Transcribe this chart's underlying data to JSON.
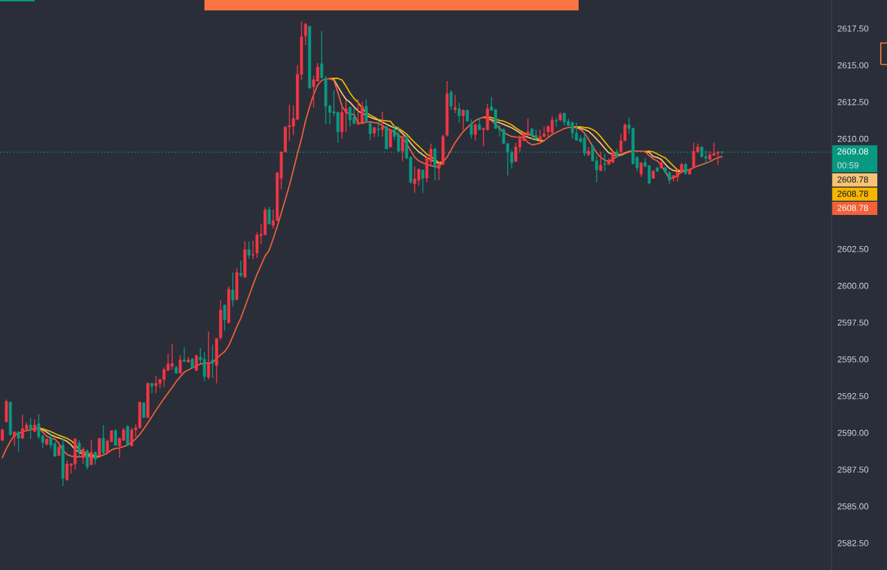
{
  "chart_data": {
    "type": "candlestick",
    "categories": [
      null,
      null,
      null,
      null,
      null,
      null,
      null,
      null,
      null,
      null,
      null,
      null,
      null,
      null,
      null,
      null,
      null,
      null,
      null,
      null,
      null,
      null,
      null,
      null,
      null,
      null,
      null,
      null,
      null,
      null,
      null,
      null,
      null,
      null,
      null,
      null,
      null,
      null,
      null,
      null,
      null,
      null,
      null,
      null,
      null,
      null,
      null,
      null,
      null,
      null,
      null,
      null,
      null,
      null,
      null,
      null,
      null,
      null,
      null,
      null,
      null,
      null,
      null,
      null,
      null,
      null,
      null,
      null,
      null,
      null,
      null,
      null,
      null,
      null,
      null,
      null,
      null,
      null,
      null,
      null,
      null,
      null,
      null,
      null,
      null,
      null,
      null,
      null,
      null,
      null,
      null,
      null,
      null,
      null,
      null,
      null,
      null,
      null,
      null,
      null,
      null,
      null,
      null,
      null,
      null,
      null,
      null,
      null,
      null,
      null,
      null,
      null,
      null,
      null,
      null,
      null,
      null,
      null,
      null,
      null,
      null,
      null,
      null,
      null,
      null,
      null,
      null,
      null,
      null,
      null,
      null,
      null,
      null,
      null,
      null,
      null,
      null,
      null,
      null,
      null,
      null,
      null,
      null,
      null,
      null,
      null,
      null,
      null,
      null,
      null,
      null,
      null,
      null,
      null,
      null,
      null,
      null,
      null,
      null,
      null,
      null,
      null,
      null,
      null,
      null,
      null,
      null,
      null,
      null,
      null,
      null,
      null,
      null,
      null,
      null,
      null,
      null,
      null,
      null
    ],
    "ohlc": [
      [
        2589.48,
        2590.28,
        2589.43,
        2590.19
      ],
      [
        2590.75,
        2592.26,
        2590.7,
        2592.12
      ],
      [
        2592.08,
        2592.12,
        2589.81,
        2589.86
      ],
      [
        2589.72,
        2590.09,
        2589.1,
        2590.05
      ],
      [
        2590.05,
        2590.09,
        2588.72,
        2589.62
      ],
      [
        2589.62,
        2591.22,
        2589.57,
        2590.28
      ],
      [
        2590.23,
        2590.7,
        2590.19,
        2590.52
      ],
      [
        2590.52,
        2591.03,
        2589.57,
        2590.28
      ],
      [
        2590.09,
        2590.89,
        2590.05,
        2590.52
      ],
      [
        2590.61,
        2591.27,
        2589.57,
        2589.72
      ],
      [
        2589.76,
        2589.86,
        2588.96,
        2589.34
      ],
      [
        2589.2,
        2589.62,
        2589.15,
        2589.57
      ],
      [
        2589.62,
        2590.09,
        2588.91,
        2589.15
      ],
      [
        2589.25,
        2589.39,
        2588.39,
        2588.39
      ],
      [
        2588.44,
        2589.1,
        2588.44,
        2589.01
      ],
      [
        2589.15,
        2589.62,
        2586.37,
        2586.89
      ],
      [
        2586.79,
        2588.11,
        2586.74,
        2587.87
      ],
      [
        2587.78,
        2587.92,
        2587.21,
        2587.87
      ],
      [
        2587.87,
        2589.62,
        2587.5,
        2589.57
      ],
      [
        2589.29,
        2589.48,
        2588.3,
        2588.67
      ],
      [
        2588.3,
        2589.01,
        2587.87,
        2588.87
      ],
      [
        2588.77,
        2588.87,
        2587.5,
        2587.68
      ],
      [
        2587.83,
        2589.53,
        2587.78,
        2588.67
      ],
      [
        2588.67,
        2588.72,
        2587.83,
        2588.2
      ],
      [
        2588.44,
        2589.62,
        2588.44,
        2589.62
      ],
      [
        2589.62,
        2590.52,
        2588.53,
        2588.63
      ],
      [
        2588.63,
        2589.53,
        2588.63,
        2589.43
      ],
      [
        2589.39,
        2590.14,
        2589.39,
        2590.14
      ],
      [
        2590.14,
        2590.23,
        2589.1,
        2589.15
      ],
      [
        2589.1,
        2589.67,
        2588.3,
        2589.62
      ],
      [
        2589.48,
        2590.33,
        2589.43,
        2590.19
      ],
      [
        2590.42,
        2590.52,
        2589.1,
        2589.15
      ],
      [
        2589.1,
        2590.33,
        2589.1,
        2590.19
      ],
      [
        2590.19,
        2590.56,
        2589.72,
        2590.33
      ],
      [
        2590.33,
        2592.08,
        2590.28,
        2592.08
      ],
      [
        2592.03,
        2592.08,
        2590.99,
        2591.03
      ],
      [
        2591.03,
        2593.44,
        2591.03,
        2593.35
      ],
      [
        2593.35,
        2593.39,
        2592.69,
        2593.16
      ],
      [
        2593.2,
        2593.86,
        2592.69,
        2593.35
      ],
      [
        2593.35,
        2593.63,
        2593.02,
        2593.63
      ],
      [
        2593.63,
        2594.43,
        2593.11,
        2594.29
      ],
      [
        2594.24,
        2595.38,
        2594.19,
        2594.67
      ],
      [
        2594.52,
        2596.03,
        2594.29,
        2594.71
      ],
      [
        2594.43,
        2594.57,
        2594.01,
        2594.05
      ],
      [
        2594.05,
        2595.28,
        2594.01,
        2594.95
      ],
      [
        2594.95,
        2595.8,
        2594.81,
        2594.86
      ],
      [
        2594.81,
        2595.14,
        2594.76,
        2594.95
      ],
      [
        2595.0,
        2595.09,
        2594.34,
        2594.43
      ],
      [
        2594.24,
        2595.33,
        2594.19,
        2595.23
      ],
      [
        2595.14,
        2595.75,
        2594.71,
        2594.95
      ],
      [
        2595.0,
        2595.47,
        2593.49,
        2593.82
      ],
      [
        2593.77,
        2596.89,
        2593.63,
        2594.76
      ],
      [
        2594.95,
        2595.99,
        2593.72,
        2594.71
      ],
      [
        2594.57,
        2596.41,
        2593.35,
        2596.41
      ],
      [
        2596.46,
        2599.01,
        2596.32,
        2598.34
      ],
      [
        2598.68,
        2598.72,
        2596.93,
        2597.69
      ],
      [
        2597.5,
        2599.95,
        2597.4,
        2599.76
      ],
      [
        2599.71,
        2600.89,
        2598.58,
        2599.01
      ],
      [
        2599.05,
        2601.18,
        2599.01,
        2600.89
      ],
      [
        2600.85,
        2601.7,
        2600.57,
        2600.7
      ],
      [
        2600.57,
        2603.02,
        2600.57,
        2602.45
      ],
      [
        2602.45,
        2603.02,
        2601.84,
        2602.07
      ],
      [
        2602.07,
        2603.06,
        2601.79,
        2602.12
      ],
      [
        2602.21,
        2603.63,
        2601.89,
        2603.44
      ],
      [
        2603.4,
        2604.19,
        2602.83,
        2603.49
      ],
      [
        2603.49,
        2605.33,
        2603.4,
        2605.14
      ],
      [
        2605.18,
        2605.37,
        2604.15,
        2604.19
      ],
      [
        2604.1,
        2605.18,
        2603.87,
        2604.43
      ],
      [
        2604.43,
        2607.69,
        2604.38,
        2607.69
      ],
      [
        2607.31,
        2609.1,
        2606.55,
        2609.1
      ],
      [
        2609.1,
        2610.8,
        2609.06,
        2610.8
      ],
      [
        2610.8,
        2612.31,
        2609.85,
        2610.89
      ],
      [
        2610.85,
        2612.26,
        2610.23,
        2611.37
      ],
      [
        2611.32,
        2615.0,
        2611.27,
        2614.38
      ],
      [
        2614.38,
        2617.97,
        2614.01,
        2616.93
      ],
      [
        2616.98,
        2617.87,
        2616.37,
        2617.78
      ],
      [
        2617.64,
        2617.64,
        2613.39,
        2613.44
      ],
      [
        2613.53,
        2614.29,
        2612.12,
        2614.01
      ],
      [
        2613.91,
        2615.14,
        2613.86,
        2614.86
      ],
      [
        2615.09,
        2617.31,
        2614.05,
        2614.15
      ],
      [
        2614.1,
        2614.29,
        2610.99,
        2612.21
      ],
      [
        2612.21,
        2612.31,
        2610.99,
        2611.79
      ],
      [
        2611.84,
        2613.3,
        2611.51,
        2611.74
      ],
      [
        2611.79,
        2611.79,
        2609.72,
        2610.47
      ],
      [
        2610.47,
        2612.21,
        2610.0,
        2611.79
      ],
      [
        2611.79,
        2612.59,
        2610.47,
        2612.03
      ],
      [
        2612.12,
        2612.21,
        2610.8,
        2611.27
      ],
      [
        2611.46,
        2612.12,
        2610.99,
        2611.03
      ],
      [
        2610.99,
        2612.68,
        2610.89,
        2611.13
      ],
      [
        2611.08,
        2612.5,
        2611.08,
        2612.21
      ],
      [
        2612.21,
        2612.68,
        2611.08,
        2611.18
      ],
      [
        2611.03,
        2611.08,
        2609.9,
        2610.33
      ],
      [
        2610.37,
        2610.8,
        2610.09,
        2610.75
      ],
      [
        2610.66,
        2611.18,
        2610.14,
        2610.61
      ],
      [
        2610.61,
        2611.84,
        2610.14,
        2610.8
      ],
      [
        2610.8,
        2610.89,
        2609.29,
        2609.29
      ],
      [
        2609.43,
        2610.66,
        2609.39,
        2610.56
      ],
      [
        2610.61,
        2610.94,
        2609.9,
        2610.14
      ],
      [
        2610.23,
        2610.85,
        2609.06,
        2609.15
      ],
      [
        2609.15,
        2610.19,
        2608.49,
        2610.14
      ],
      [
        2610.14,
        2610.23,
        2608.58,
        2608.68
      ],
      [
        2608.72,
        2608.82,
        2606.93,
        2607.03
      ],
      [
        2606.93,
        2608.11,
        2606.32,
        2607.26
      ],
      [
        2607.17,
        2607.97,
        2606.79,
        2607.92
      ],
      [
        2607.87,
        2607.87,
        2606.32,
        2607.31
      ],
      [
        2607.31,
        2608.77,
        2607.03,
        2608.68
      ],
      [
        2608.44,
        2609.67,
        2608.11,
        2609.29
      ],
      [
        2609.29,
        2609.39,
        2607.17,
        2608.11
      ],
      [
        2607.97,
        2608.44,
        2607.17,
        2608.25
      ],
      [
        2608.25,
        2610.28,
        2608.2,
        2610.14
      ],
      [
        2610.23,
        2613.91,
        2610.14,
        2613.06
      ],
      [
        2613.16,
        2613.3,
        2611.93,
        2612.21
      ],
      [
        2611.98,
        2612.97,
        2611.74,
        2612.12
      ],
      [
        2612.03,
        2612.45,
        2611.08,
        2611.55
      ],
      [
        2611.55,
        2611.98,
        2610.61,
        2611.93
      ],
      [
        2611.93,
        2611.98,
        2611.18,
        2611.18
      ],
      [
        2610.99,
        2611.32,
        2610.0,
        2610.28
      ],
      [
        2610.28,
        2611.03,
        2609.85,
        2610.94
      ],
      [
        2610.94,
        2611.42,
        2610.56,
        2610.61
      ],
      [
        2610.61,
        2610.75,
        2609.48,
        2610.7
      ],
      [
        2610.61,
        2612.36,
        2610.56,
        2612.03
      ],
      [
        2612.17,
        2612.83,
        2611.89,
        2611.93
      ],
      [
        2611.98,
        2612.03,
        2610.66,
        2610.7
      ],
      [
        2610.7,
        2610.94,
        2610.14,
        2610.61
      ],
      [
        2610.61,
        2610.7,
        2609.62,
        2609.67
      ],
      [
        2609.67,
        2609.67,
        2607.5,
        2609.1
      ],
      [
        2609.06,
        2609.24,
        2607.97,
        2608.35
      ],
      [
        2608.44,
        2609.72,
        2608.44,
        2609.43
      ],
      [
        2609.43,
        2610.23,
        2609.1,
        2610.0
      ],
      [
        2609.85,
        2610.37,
        2609.85,
        2610.33
      ],
      [
        2610.23,
        2611.37,
        2610.14,
        2610.47
      ],
      [
        2610.66,
        2610.7,
        2609.9,
        2610.19
      ],
      [
        2610.23,
        2610.61,
        2609.85,
        2610.09
      ],
      [
        2609.9,
        2610.61,
        2609.85,
        2610.14
      ],
      [
        2610.14,
        2610.8,
        2610.09,
        2610.33
      ],
      [
        2610.47,
        2610.85,
        2610.14,
        2610.85
      ],
      [
        2610.42,
        2611.51,
        2610.33,
        2611.27
      ],
      [
        2611.23,
        2611.42,
        2610.8,
        2611.18
      ],
      [
        2611.27,
        2611.79,
        2611.18,
        2611.65
      ],
      [
        2611.74,
        2611.74,
        2610.89,
        2611.13
      ],
      [
        2611.18,
        2611.37,
        2610.85,
        2610.89
      ],
      [
        2611.08,
        2611.18,
        2610.0,
        2610.37
      ],
      [
        2610.37,
        2611.08,
        2609.85,
        2609.9
      ],
      [
        2610.0,
        2610.23,
        2609.72,
        2609.81
      ],
      [
        2610.05,
        2610.33,
        2608.82,
        2609.01
      ],
      [
        2608.91,
        2609.43,
        2608.82,
        2609.15
      ],
      [
        2609.53,
        2609.53,
        2608.44,
        2608.49
      ],
      [
        2608.49,
        2608.82,
        2607.03,
        2607.87
      ],
      [
        2607.83,
        2609.1,
        2607.78,
        2608.2
      ],
      [
        2608.3,
        2608.96,
        2607.78,
        2608.25
      ],
      [
        2608.25,
        2608.68,
        2608.25,
        2608.44
      ],
      [
        2608.39,
        2609.2,
        2608.35,
        2609.1
      ],
      [
        2609.1,
        2609.29,
        2608.72,
        2608.82
      ],
      [
        2609.1,
        2610.33,
        2609.01,
        2609.85
      ],
      [
        2609.85,
        2611.03,
        2609.85,
        2610.94
      ],
      [
        2610.94,
        2611.42,
        2610.33,
        2610.7
      ],
      [
        2610.7,
        2610.75,
        2608.25,
        2608.3
      ],
      [
        2608.72,
        2608.82,
        2607.78,
        2608.01
      ],
      [
        2607.59,
        2608.39,
        2607.4,
        2608.35
      ],
      [
        2608.39,
        2608.68,
        2608.06,
        2608.11
      ],
      [
        2608.16,
        2608.2,
        2606.88,
        2606.98
      ],
      [
        2607.31,
        2607.87,
        2607.26,
        2607.78
      ],
      [
        2608.01,
        2608.11,
        2607.73,
        2607.78
      ],
      [
        2608.01,
        2608.54,
        2607.97,
        2608.35
      ],
      [
        2608.01,
        2608.11,
        2607.64,
        2607.69
      ],
      [
        2607.69,
        2607.78,
        2606.93,
        2607.17
      ],
      [
        2607.31,
        2607.5,
        2607.07,
        2607.5
      ],
      [
        2607.4,
        2607.97,
        2607.07,
        2607.73
      ],
      [
        2607.69,
        2608.35,
        2607.64,
        2608.25
      ],
      [
        2608.25,
        2608.35,
        2607.54,
        2607.64
      ],
      [
        2607.59,
        2607.97,
        2607.54,
        2607.87
      ],
      [
        2608.01,
        2609.72,
        2607.97,
        2609.15
      ],
      [
        2609.1,
        2609.67,
        2609.01,
        2609.43
      ],
      [
        2609.43,
        2609.48,
        2608.72,
        2608.77
      ],
      [
        2608.77,
        2609.2,
        2608.3,
        2608.68
      ],
      [
        2608.58,
        2609.15,
        2608.54,
        2608.91
      ],
      [
        2608.87,
        2609.72,
        2608.82,
        2609.01
      ],
      [
        2609.01,
        2609.15,
        2608.2,
        2609.1
      ],
      [
        2609.1,
        2609.15,
        2608.96,
        2609.08
      ]
    ],
    "colors": [
      "#f23645",
      "#f23645",
      "#089981",
      "#f23645",
      "#089981",
      "#f23645",
      "#f23645",
      "#089981",
      "#f23645",
      "#089981",
      "#089981",
      "#f23645",
      "#089981",
      "#089981",
      "#f23645",
      "#089981",
      "#f23645",
      "#f23645",
      "#f23645",
      "#089981",
      "#f23645",
      "#089981",
      "#f23645",
      "#089981",
      "#f23645",
      "#089981",
      "#f23645",
      "#f23645",
      "#089981",
      "#f23645",
      "#f23645",
      "#089981",
      "#f23645",
      "#f23645",
      "#f23645",
      "#089981",
      "#f23645",
      "#089981",
      "#f23645",
      "#f23645",
      "#f23645",
      "#f23645",
      "#f23645",
      "#089981",
      "#f23645",
      "#089981",
      "#f23645",
      "#089981",
      "#f23645",
      "#089981",
      "#089981",
      "#f23645",
      "#089981",
      "#f23645",
      "#f23645",
      "#089981",
      "#f23645",
      "#089981",
      "#f23645",
      "#089981",
      "#f23645",
      "#089981",
      "#f23645",
      "#f23645",
      "#f23645",
      "#f23645",
      "#089981",
      "#f23645",
      "#f23645",
      "#f23645",
      "#f23645",
      "#f23645",
      "#f23645",
      "#f23645",
      "#f23645",
      "#f23645",
      "#089981",
      "#f23645",
      "#f23645",
      "#089981",
      "#089981",
      "#089981",
      "#089981",
      "#089981",
      "#f23645",
      "#f23645",
      "#089981",
      "#089981",
      "#f23645",
      "#f23645",
      "#089981",
      "#089981",
      "#f23645",
      "#089981",
      "#f23645",
      "#089981",
      "#f23645",
      "#089981",
      "#089981",
      "#f23645",
      "#089981",
      "#089981",
      "#f23645",
      "#f23645",
      "#089981",
      "#f23645",
      "#f23645",
      "#089981",
      "#f23645",
      "#f23645",
      "#f23645",
      "#089981",
      "#f23645",
      "#089981",
      "#f23645",
      "#089981",
      "#089981",
      "#f23645",
      "#089981",
      "#f23645",
      "#f23645",
      "#089981",
      "#089981",
      "#089981",
      "#089981",
      "#089981",
      "#089981",
      "#f23645",
      "#f23645",
      "#f23645",
      "#f23645",
      "#089981",
      "#089981",
      "#f23645",
      "#f23645",
      "#f23645",
      "#f23645",
      "#089981",
      "#f23645",
      "#089981",
      "#089981",
      "#089981",
      "#089981",
      "#089981",
      "#089981",
      "#f23645",
      "#089981",
      "#089981",
      "#f23645",
      "#089981",
      "#f23645",
      "#f23645",
      "#089981",
      "#f23645",
      "#f23645",
      "#089981",
      "#089981",
      "#089981",
      "#f23645",
      "#089981",
      "#089981",
      "#f23645",
      "#089981",
      "#f23645",
      "#089981",
      "#089981",
      "#f23645",
      "#f23645",
      "#f23645",
      "#089981",
      "#f23645",
      "#f23645",
      "#f23645",
      "#089981",
      "#089981",
      "#f23645",
      "#f23645",
      "#f23645",
      "#089981"
    ],
    "series": [
      {
        "type": "line",
        "color": "#f8c274",
        "values": [
          null,
          null,
          null,
          null,
          null,
          null,
          null,
          null,
          null,
          2590.32,
          2590.19,
          2590.03,
          2589.85,
          2589.73,
          2589.64,
          2589.55,
          2589.41,
          2589.18,
          2588.85,
          2588.67,
          2588.53,
          2588.47,
          2588.4,
          2588.36,
          2588.37,
          null,
          null,
          null,
          null,
          null,
          null,
          null,
          null,
          null,
          null,
          null,
          null,
          null,
          null,
          null,
          null,
          null,
          null,
          null,
          null,
          null,
          null,
          null,
          null,
          null,
          null,
          null,
          null,
          null,
          null,
          null,
          null,
          null,
          null,
          null,
          null,
          null,
          null,
          null,
          null,
          null,
          null,
          null,
          null,
          null,
          null,
          null,
          null,
          null,
          null,
          null,
          null,
          null,
          null,
          null,
          null,
          2614.08,
          2614.02,
          2613.54,
          2613.09,
          2612.67,
          2612.47,
          2612.16,
          2611.88,
          2611.72,
          2611.6,
          2611.45,
          2611.35,
          2611.26,
          2611.12,
          2610.99,
          2610.85,
          2610.73,
          2610.62,
          2610.35,
          2610.06,
          2609.7,
          2609.38,
          2609.11,
          2608.9,
          2608.71,
          2608.57,
          2608.44,
          2608.31,
          2608.41,
          null,
          null,
          null,
          null,
          null,
          null,
          null,
          null,
          null,
          2611.45,
          2611.38,
          2611.29,
          2611.18,
          2611.08,
          2610.97,
          2610.85,
          2610.74,
          2610.57,
          2610.4,
          2610.2,
          2610.09,
          2610.0,
          2609.92,
          2609.85,
          2609.86,
          null,
          null,
          null,
          null,
          null,
          null,
          2610.79,
          2610.75,
          2610.7,
          2610.62,
          2610.5,
          2610.25,
          2609.97,
          2609.67,
          2609.34,
          2609.04,
          2608.9,
          2608.83,
          2608.87,
          2609.0,
          2609.11,
          2609.15,
          null,
          null,
          2609.12,
          2609.07,
          2608.79,
          2608.72,
          2608.59,
          2608.26,
          2607.98,
          2607.83,
          2607.78,
          2607.78,
          2607.83,
          null,
          null,
          null,
          null,
          null,
          null,
          null,
          null,
          null
        ]
      },
      {
        "type": "line",
        "color": "#f6b500",
        "values": [
          null,
          null,
          null,
          null,
          null,
          null,
          null,
          null,
          null,
          2590.32,
          2590.26,
          2590.17,
          2590.08,
          2589.94,
          2589.82,
          2589.72,
          2589.62,
          2589.46,
          2589.21,
          2588.83,
          2588.69,
          2588.59,
          2588.5,
          2588.42,
          2588.37,
          null,
          null,
          null,
          null,
          null,
          null,
          null,
          null,
          null,
          null,
          null,
          null,
          null,
          null,
          null,
          null,
          null,
          null,
          null,
          null,
          null,
          null,
          null,
          null,
          null,
          null,
          null,
          null,
          null,
          null,
          null,
          null,
          null,
          null,
          null,
          null,
          null,
          null,
          null,
          null,
          null,
          null,
          null,
          null,
          null,
          null,
          null,
          null,
          null,
          null,
          null,
          null,
          null,
          null,
          null,
          null,
          2614.08,
          2614.1,
          2614.1,
          2613.99,
          2613.58,
          2613.11,
          2612.73,
          2612.45,
          2612.09,
          2611.77,
          2611.6,
          2611.46,
          2611.29,
          2611.24,
          2611.21,
          2611.18,
          2610.83,
          2610.71,
          2610.52,
          2610.31,
          2610.01,
          2609.73,
          2609.48,
          2609.21,
          2608.94,
          2608.78,
          2608.59,
          2608.36,
          2608.41,
          null,
          null,
          null,
          null,
          null,
          null,
          null,
          null,
          null,
          2611.45,
          2611.46,
          2611.44,
          2611.33,
          2611.24,
          2611.19,
          2611.07,
          2610.93,
          2610.73,
          2610.55,
          2610.38,
          2610.29,
          2610.24,
          2610.05,
          2609.89,
          2609.86,
          null,
          null,
          null,
          null,
          null,
          null,
          2610.79,
          2610.8,
          2610.8,
          2610.76,
          2610.73,
          2610.62,
          2610.43,
          2610.13,
          2609.79,
          2609.45,
          2609.14,
          2608.94,
          2608.92,
          2609.04,
          2609.13,
          2609.15,
          null,
          null,
          2609.12,
          2609.15,
          2609.1,
          2608.96,
          2608.82,
          2608.68,
          2608.41,
          2608.14,
          2607.87,
          2607.79,
          2607.83,
          null,
          null,
          null,
          null,
          null,
          null,
          null,
          null,
          null
        ]
      },
      {
        "type": "line",
        "color": "#f3603a",
        "values": [
          2588.3,
          2588.91,
          2589.41,
          2589.83,
          2589.96,
          2590.07,
          2590.13,
          2590.2,
          2590.26,
          2590.32,
          2590.03,
          2589.76,
          2589.63,
          2589.57,
          2589.26,
          2588.8,
          2588.52,
          2588.41,
          2588.36,
          2588.36,
          2588.38,
          2588.38,
          2588.35,
          2588.31,
          2588.37,
          2588.48,
          2588.6,
          2588.83,
          2588.93,
          2588.96,
          2589.06,
          2589.16,
          2589.34,
          2589.59,
          2589.89,
          2590.26,
          2590.67,
          2591.1,
          2591.52,
          2591.93,
          2592.32,
          2592.7,
          2593.08,
          2593.48,
          2593.8,
          2594.12,
          2594.27,
          2594.41,
          2594.55,
          2594.67,
          2594.72,
          2594.74,
          2594.76,
          2595.05,
          2595.3,
          2595.52,
          2595.91,
          2596.55,
          2597.21,
          2597.8,
          2598.55,
          2599.3,
          2600.05,
          2600.77,
          2601.4,
          2602.02,
          2602.41,
          2603.19,
          2604.03,
          2604.94,
          2605.87,
          2606.81,
          2607.87,
          2608.98,
          2610.0,
          2611.21,
          2612.16,
          2613.0,
          2613.65,
          2613.96,
          2614.06,
          2614.08,
          2613.97,
          2613.14,
          2612.22,
          2611.78,
          2611.66,
          2611.65,
          2611.08,
          2611.04,
          2611.12,
          2611.15,
          2611.09,
          2611.05,
          2610.9,
          2610.69,
          2610.6,
          2610.44,
          2610.25,
          2610.01,
          2609.66,
          2609.18,
          2608.73,
          2608.49,
          2608.35,
          2608.24,
          2608.16,
          2608.08,
          2608.09,
          2608.41,
          2608.74,
          2609.23,
          2609.73,
          2610.12,
          2610.48,
          2610.76,
          2611.01,
          2611.23,
          2611.37,
          2611.45,
          2611.36,
          2611.22,
          2610.97,
          2610.71,
          2610.43,
          2610.26,
          2610.14,
          2610.11,
          2610.1,
          2610.08,
          2609.74,
          2609.58,
          2609.62,
          2609.7,
          2609.86,
          2610.08,
          2610.28,
          2610.42,
          2610.55,
          2610.69,
          2610.76,
          2610.79,
          2610.73,
          2610.62,
          2610.38,
          2609.95,
          2609.48,
          2609.04,
          2608.73,
          2608.53,
          2608.46,
          2608.6,
          2608.77,
          2608.92,
          2609.01,
          2609.11,
          2609.15,
          2609.15,
          2609.15,
          2609.12,
          2608.85,
          2608.62,
          2608.49,
          2608.18,
          2607.71,
          2607.29,
          2607.31,
          2607.51,
          2607.74,
          2607.83,
          2607.89,
          2608.03,
          2608.14,
          2608.23,
          2608.33,
          2608.44,
          2608.58,
          2608.71,
          2608.78
        ]
      }
    ],
    "ylim": [
      2580.66,
      2619.43
    ],
    "yticks": [
      {
        "value": 2582.5,
        "label": "2582.50"
      },
      {
        "value": 2585,
        "label": "2585.00"
      },
      {
        "value": 2587.5,
        "label": "2587.50"
      },
      {
        "value": 2590,
        "label": "2590.00"
      },
      {
        "value": 2592.5,
        "label": "2592.50"
      },
      {
        "value": 2595,
        "label": "2595.00"
      },
      {
        "value": 2597.5,
        "label": "2597.50"
      },
      {
        "value": 2600,
        "label": "2600.00"
      },
      {
        "value": 2602.5,
        "label": "2602.50"
      },
      {
        "value": 2610,
        "label": "2610.00"
      },
      {
        "value": 2612.5,
        "label": "2612.50"
      },
      {
        "value": 2615,
        "label": "2615.00"
      },
      {
        "value": 2617.5,
        "label": "2617.50"
      }
    ],
    "tick_labels": "y",
    "ref_lines": [
      {
        "axis": "y",
        "value": 2609.08,
        "label": "2609.08",
        "color": "#089981",
        "line_style": "dotted"
      }
    ],
    "annotations": [
      "00:59",
      "2608.78",
      "2608.78",
      "2608.78"
    ]
  }
}
